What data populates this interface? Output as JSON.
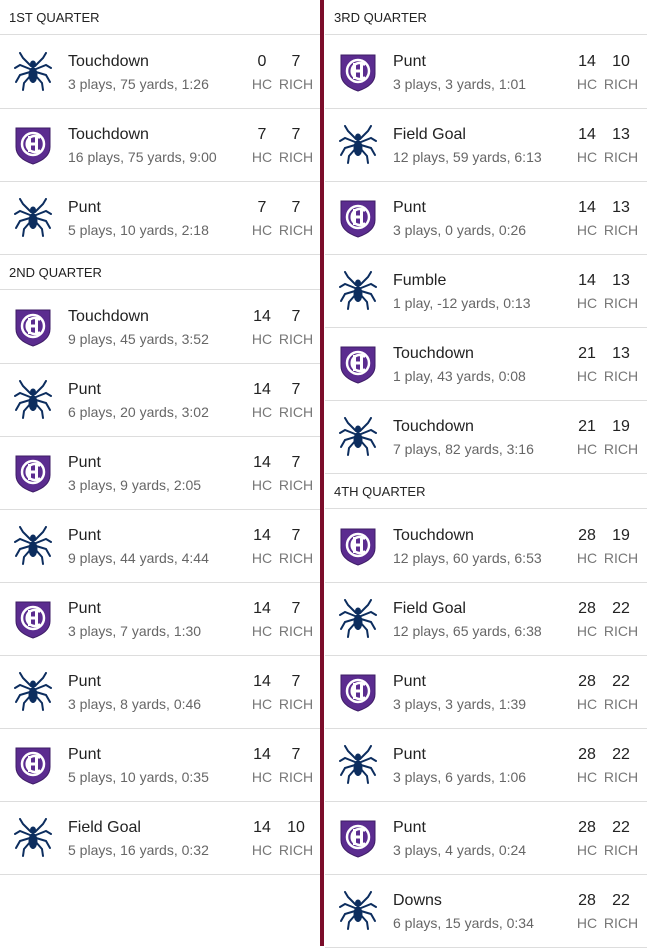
{
  "teams": [
    "HC",
    "RICH"
  ],
  "quarters": [
    {
      "title": "1ST QUARTER",
      "drives": [
        {
          "team": "RICH",
          "result": "Touchdown",
          "detail": "3 plays, 75 yards, 1:26",
          "score": [
            0,
            7
          ]
        },
        {
          "team": "HC",
          "result": "Touchdown",
          "detail": "16 plays, 75 yards, 9:00",
          "score": [
            7,
            7
          ]
        },
        {
          "team": "RICH",
          "result": "Punt",
          "detail": "5 plays, 10 yards, 2:18",
          "score": [
            7,
            7
          ]
        }
      ]
    },
    {
      "title": "2ND QUARTER",
      "drives": [
        {
          "team": "HC",
          "result": "Touchdown",
          "detail": "9 plays, 45 yards, 3:52",
          "score": [
            14,
            7
          ]
        },
        {
          "team": "RICH",
          "result": "Punt",
          "detail": "6 plays, 20 yards, 3:02",
          "score": [
            14,
            7
          ]
        },
        {
          "team": "HC",
          "result": "Punt",
          "detail": "3 plays, 9 yards, 2:05",
          "score": [
            14,
            7
          ]
        },
        {
          "team": "RICH",
          "result": "Punt",
          "detail": "9 plays, 44 yards, 4:44",
          "score": [
            14,
            7
          ]
        },
        {
          "team": "HC",
          "result": "Punt",
          "detail": "3 plays, 7 yards, 1:30",
          "score": [
            14,
            7
          ]
        },
        {
          "team": "RICH",
          "result": "Punt",
          "detail": "3 plays, 8 yards, 0:46",
          "score": [
            14,
            7
          ]
        },
        {
          "team": "HC",
          "result": "Punt",
          "detail": "5 plays, 10 yards, 0:35",
          "score": [
            14,
            7
          ]
        },
        {
          "team": "RICH",
          "result": "Field Goal",
          "detail": "5 plays, 16 yards, 0:32",
          "score": [
            14,
            10
          ]
        }
      ]
    },
    {
      "title": "3RD QUARTER",
      "drives": [
        {
          "team": "HC",
          "result": "Punt",
          "detail": "3 plays, 3 yards, 1:01",
          "score": [
            14,
            10
          ]
        },
        {
          "team": "RICH",
          "result": "Field Goal",
          "detail": "12 plays, 59 yards, 6:13",
          "score": [
            14,
            13
          ]
        },
        {
          "team": "HC",
          "result": "Punt",
          "detail": "3 plays, 0 yards, 0:26",
          "score": [
            14,
            13
          ]
        },
        {
          "team": "RICH",
          "result": "Fumble",
          "detail": "1 play, -12 yards, 0:13",
          "score": [
            14,
            13
          ]
        },
        {
          "team": "HC",
          "result": "Touchdown",
          "detail": "1 play, 43 yards, 0:08",
          "score": [
            21,
            13
          ]
        },
        {
          "team": "RICH",
          "result": "Touchdown",
          "detail": "7 plays, 82 yards, 3:16",
          "score": [
            21,
            19
          ]
        }
      ]
    },
    {
      "title": "4TH QUARTER",
      "drives": [
        {
          "team": "HC",
          "result": "Touchdown",
          "detail": "12 plays, 60 yards, 6:53",
          "score": [
            28,
            19
          ]
        },
        {
          "team": "RICH",
          "result": "Field Goal",
          "detail": "12 plays, 65 yards, 6:38",
          "score": [
            28,
            22
          ]
        },
        {
          "team": "HC",
          "result": "Punt",
          "detail": "3 plays, 3 yards, 1:39",
          "score": [
            28,
            22
          ]
        },
        {
          "team": "RICH",
          "result": "Punt",
          "detail": "3 plays, 6 yards, 1:06",
          "score": [
            28,
            22
          ]
        },
        {
          "team": "HC",
          "result": "Punt",
          "detail": "3 plays, 4 yards, 0:24",
          "score": [
            28,
            22
          ]
        },
        {
          "team": "RICH",
          "result": "Downs",
          "detail": "6 plays, 15 yards, 0:34",
          "score": [
            28,
            22
          ]
        }
      ]
    }
  ]
}
